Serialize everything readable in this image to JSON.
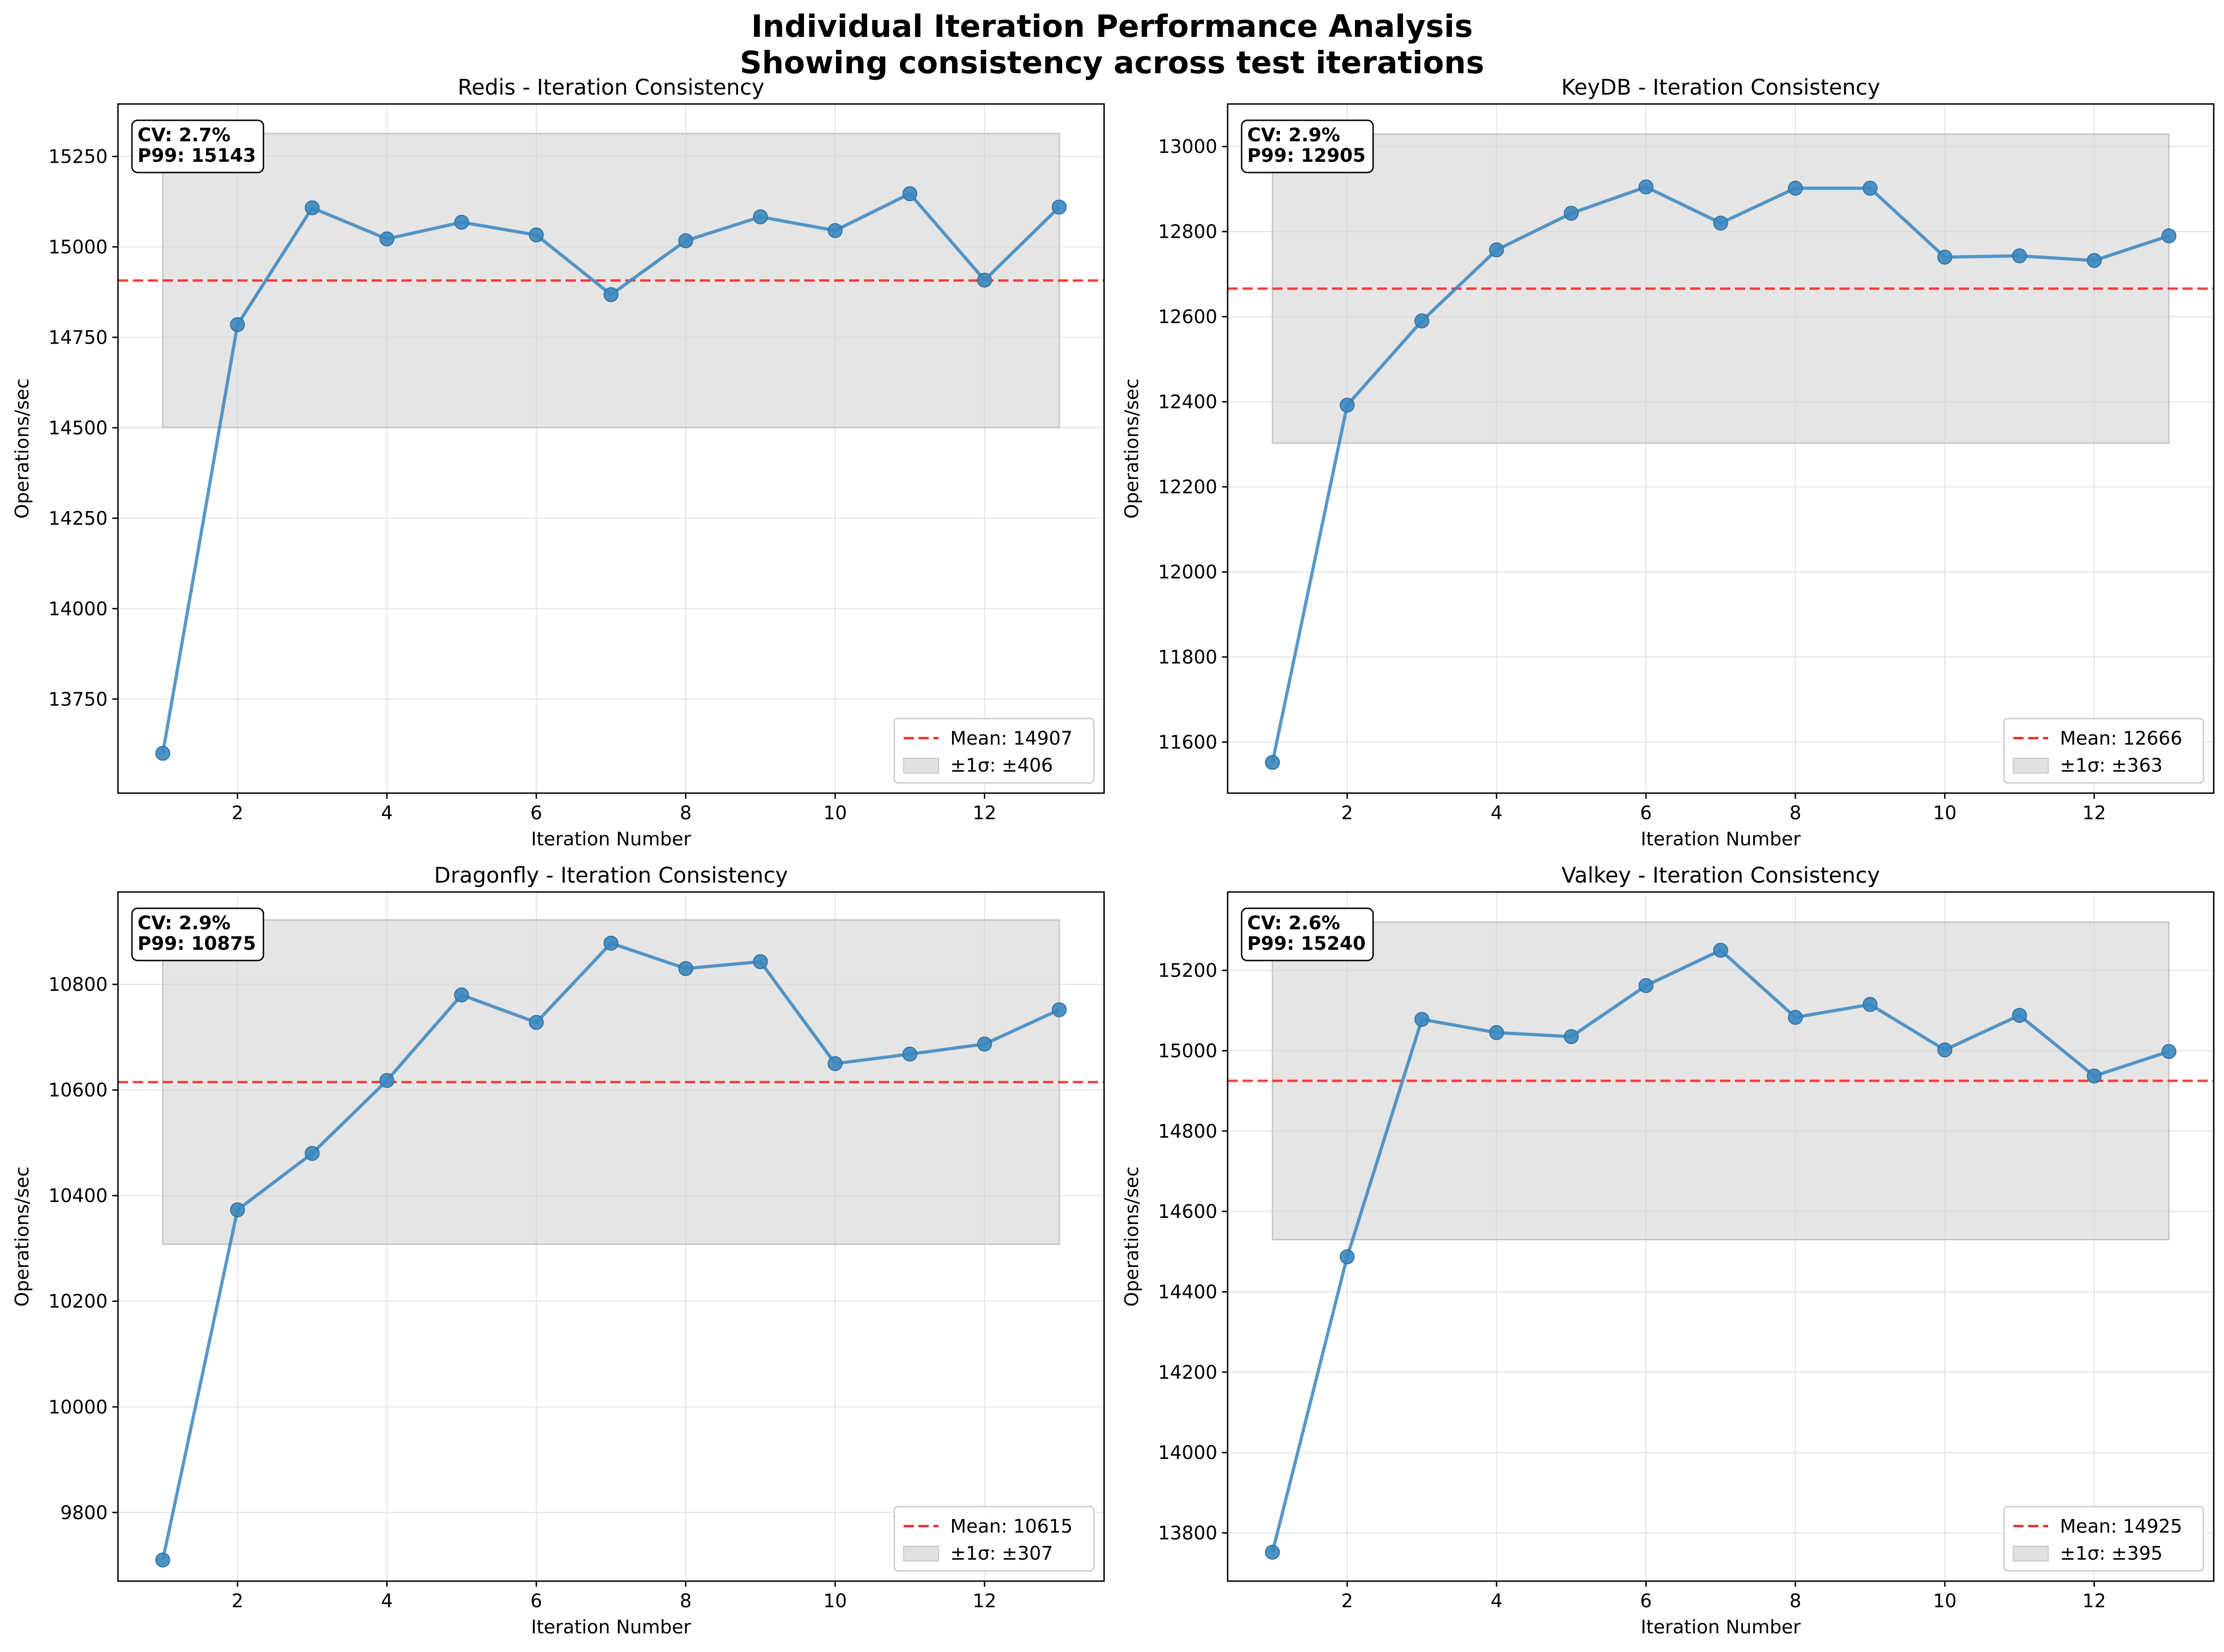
{
  "figure": {
    "title_line1": "Individual Iteration Performance Analysis",
    "title_line2": "Showing consistency across test iterations"
  },
  "colors": {
    "line": "#3a86bf",
    "mean": "#ee2b2b",
    "band": "#d3d3d3",
    "grid": "#e6e6e6"
  },
  "chart_data": [
    {
      "type": "line",
      "title": "Redis - Iteration Consistency",
      "xlabel": "Iteration Number",
      "ylabel": "Operations/sec",
      "x": [
        1,
        2,
        3,
        4,
        5,
        6,
        7,
        8,
        9,
        10,
        11,
        12,
        13
      ],
      "y": [
        13600,
        14785,
        15108,
        15022,
        15068,
        15033,
        14868,
        15017,
        15083,
        15045,
        15147,
        14908,
        15110
      ],
      "mean": 14907,
      "std": 406,
      "mean_label": "Mean: 14907",
      "band_label": "±1σ: ±406",
      "stats": [
        "CV: 2.7%",
        "P99: 15143"
      ],
      "xlim": [
        0.4,
        13.6
      ],
      "ylim": [
        13490,
        15395
      ],
      "xticks": [
        2,
        4,
        6,
        8,
        10,
        12
      ],
      "yticks": [
        13750,
        14000,
        14250,
        14500,
        14750,
        15000,
        15250
      ],
      "grid": true,
      "legend": "lower right"
    },
    {
      "type": "line",
      "title": "KeyDB - Iteration Consistency",
      "xlabel": "Iteration Number",
      "ylabel": "Operations/sec",
      "x": [
        1,
        2,
        3,
        4,
        5,
        6,
        7,
        8,
        9,
        10,
        11,
        12,
        13
      ],
      "y": [
        11552,
        12392,
        12590,
        12757,
        12843,
        12905,
        12820,
        12902,
        12902,
        12740,
        12743,
        12732,
        12790
      ],
      "mean": 12666,
      "std": 363,
      "mean_label": "Mean: 12666",
      "band_label": "±1σ: ±363",
      "stats": [
        "CV: 2.9%",
        "P99: 12905"
      ],
      "xlim": [
        0.4,
        13.6
      ],
      "ylim": [
        11480,
        13100
      ],
      "xticks": [
        2,
        4,
        6,
        8,
        10,
        12
      ],
      "yticks": [
        11600,
        11800,
        12000,
        12200,
        12400,
        12600,
        12800,
        13000
      ],
      "grid": true,
      "legend": "lower right"
    },
    {
      "type": "line",
      "title": "Dragonfly - Iteration Consistency",
      "xlabel": "Iteration Number",
      "ylabel": "Operations/sec",
      "x": [
        1,
        2,
        3,
        4,
        5,
        6,
        7,
        8,
        9,
        10,
        11,
        12,
        13
      ],
      "y": [
        9710,
        10373,
        10480,
        10618,
        10780,
        10728,
        10878,
        10830,
        10843,
        10650,
        10668,
        10687,
        10752
      ],
      "mean": 10615,
      "std": 307,
      "mean_label": "Mean: 10615",
      "band_label": "±1σ: ±307",
      "stats": [
        "CV: 2.9%",
        "P99: 10875"
      ],
      "xlim": [
        0.4,
        13.6
      ],
      "ylim": [
        9670,
        10975
      ],
      "xticks": [
        2,
        4,
        6,
        8,
        10,
        12
      ],
      "yticks": [
        9800,
        10000,
        10200,
        10400,
        10600,
        10800
      ],
      "grid": true,
      "legend": "lower right"
    },
    {
      "type": "line",
      "title": "Valkey - Iteration Consistency",
      "xlabel": "Iteration Number",
      "ylabel": "Operations/sec",
      "x": [
        1,
        2,
        3,
        4,
        5,
        6,
        7,
        8,
        9,
        10,
        11,
        12,
        13
      ],
      "y": [
        13752,
        14487,
        15078,
        15045,
        15035,
        15162,
        15250,
        15083,
        15115,
        15002,
        15088,
        14937,
        14998
      ],
      "mean": 14925,
      "std": 395,
      "mean_label": "Mean: 14925",
      "band_label": "±1σ: ±395",
      "stats": [
        "CV: 2.6%",
        "P99: 15240"
      ],
      "xlim": [
        0.4,
        13.6
      ],
      "ylim": [
        13680,
        15395
      ],
      "xticks": [
        2,
        4,
        6,
        8,
        10,
        12
      ],
      "yticks": [
        13800,
        14000,
        14200,
        14400,
        14600,
        14800,
        15000,
        15200
      ],
      "grid": true,
      "legend": "lower right"
    }
  ]
}
